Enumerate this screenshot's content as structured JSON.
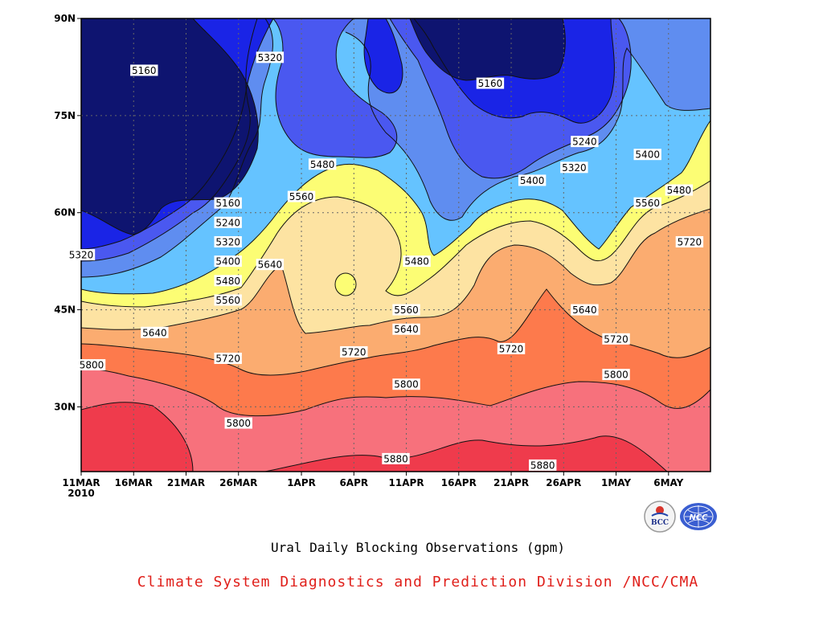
{
  "chart_data": {
    "type": "heatmap",
    "title": "Ural Daily Blocking Observations (gpm)",
    "credit": "Climate System Diagnostics and Prediction Division /NCC/CMA",
    "x_ticks": [
      "11MAR",
      "16MAR",
      "21MAR",
      "26MAR",
      "1APR",
      "6APR",
      "11APR",
      "16APR",
      "21APR",
      "26APR",
      "1MAY",
      "6MAY"
    ],
    "x_year_label": "2010",
    "x_range": [
      "2010-03-11",
      "2010-05-10"
    ],
    "y_ticks": [
      "30N",
      "45N",
      "60N",
      "75N",
      "90N"
    ],
    "y_range": [
      20,
      90
    ],
    "grid": true,
    "contour_interval": 80,
    "levels": [
      5160,
      5240,
      5320,
      5400,
      5480,
      5560,
      5640,
      5720,
      5800,
      5880
    ],
    "colors": [
      "#0e1470",
      "#1a24e6",
      "#4a58f0",
      "#5f8df0",
      "#65c3ff",
      "#fcfd74",
      "#fde3a2",
      "#fbac70",
      "#fd7a4c",
      "#f7717c",
      "#ef3b4c"
    ],
    "contour_labels": [
      {
        "date": "2010-03-17",
        "lat": 82,
        "value": "5160"
      },
      {
        "date": "2010-03-29",
        "lat": 84,
        "value": "5320"
      },
      {
        "date": "2010-04-19",
        "lat": 80,
        "value": "5160"
      },
      {
        "date": "2010-04-28",
        "lat": 71,
        "value": "5240"
      },
      {
        "date": "2010-05-04",
        "lat": 69,
        "value": "5400"
      },
      {
        "date": "2010-04-27",
        "lat": 67,
        "value": "5320"
      },
      {
        "date": "2010-04-23",
        "lat": 65,
        "value": "5400"
      },
      {
        "date": "2010-04-03",
        "lat": 67.5,
        "value": "5480"
      },
      {
        "date": "2010-04-01",
        "lat": 62.5,
        "value": "5560"
      },
      {
        "date": "2010-05-07",
        "lat": 63.5,
        "value": "5480"
      },
      {
        "date": "2010-05-04",
        "lat": 61.5,
        "value": "5560"
      },
      {
        "date": "2010-05-08",
        "lat": 55.5,
        "value": "5720"
      },
      {
        "date": "2010-03-25",
        "lat": 61.5,
        "value": "5160"
      },
      {
        "date": "2010-03-25",
        "lat": 58.5,
        "value": "5240"
      },
      {
        "date": "2010-03-25",
        "lat": 55.5,
        "value": "5320"
      },
      {
        "date": "2010-03-11",
        "lat": 53.5,
        "value": "5320"
      },
      {
        "date": "2010-03-25",
        "lat": 52.5,
        "value": "5400"
      },
      {
        "date": "2010-03-25",
        "lat": 49.5,
        "value": "5480"
      },
      {
        "date": "2010-03-25",
        "lat": 46.5,
        "value": "5560"
      },
      {
        "date": "2010-03-18",
        "lat": 41.5,
        "value": "5640"
      },
      {
        "date": "2010-03-29",
        "lat": 52,
        "value": "5640"
      },
      {
        "date": "2010-04-12",
        "lat": 52.5,
        "value": "5480"
      },
      {
        "date": "2010-04-11",
        "lat": 45,
        "value": "5560"
      },
      {
        "date": "2010-04-11",
        "lat": 42,
        "value": "5640"
      },
      {
        "date": "2010-04-06",
        "lat": 38.5,
        "value": "5720"
      },
      {
        "date": "2010-04-21",
        "lat": 39,
        "value": "5720"
      },
      {
        "date": "2010-04-28",
        "lat": 45,
        "value": "5640"
      },
      {
        "date": "2010-05-01",
        "lat": 40.5,
        "value": "5720"
      },
      {
        "date": "2010-03-25",
        "lat": 37.5,
        "value": "5720"
      },
      {
        "date": "2010-03-12",
        "lat": 36.5,
        "value": "5800"
      },
      {
        "date": "2010-04-11",
        "lat": 33.5,
        "value": "5800"
      },
      {
        "date": "2010-05-01",
        "lat": 35,
        "value": "5800"
      },
      {
        "date": "2010-03-26",
        "lat": 27.5,
        "value": "5800"
      },
      {
        "date": "2010-04-10",
        "lat": 22,
        "value": "5880"
      },
      {
        "date": "2010-04-24",
        "lat": 21,
        "value": "5880"
      }
    ]
  },
  "logos": {
    "bcc": {
      "text": "BCC",
      "name": "bcc-logo"
    },
    "ncc": {
      "text": "NCC",
      "name": "ncc-logo"
    }
  }
}
